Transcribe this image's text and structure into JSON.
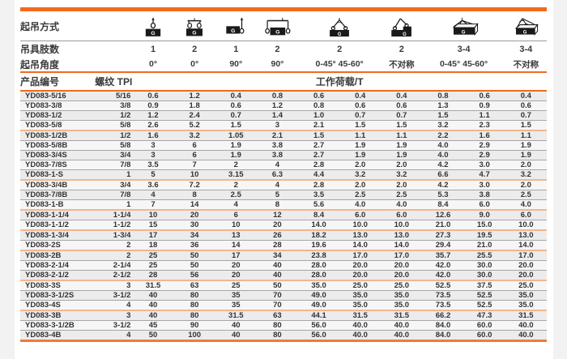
{
  "table": {
    "lift_method_label": "起吊方式",
    "legs_label": "吊具肢数",
    "angle_label": "起吊角度",
    "product_label": "产品编号",
    "thread_label": "螺纹 TPI",
    "load_label": "工作荷载/T",
    "columns": [
      {
        "icon": "sling-single-leg-vertical-icon",
        "legs": "1",
        "angle": "0°"
      },
      {
        "icon": "sling-two-leg-vertical-icon",
        "legs": "2",
        "angle": "0°"
      },
      {
        "icon": "sling-single-leg-side-icon",
        "legs": "1",
        "angle": "90°"
      },
      {
        "icon": "sling-two-leg-side-icon",
        "legs": "2",
        "angle": "90°"
      },
      {
        "icon": "sling-two-leg-angled-icon",
        "legs": "2",
        "angle": "0-45° 45-60°"
      },
      {
        "icon": "sling-two-leg-asymmetric-icon",
        "legs": "2",
        "angle": "不对称"
      },
      {
        "icon": "sling-multi-leg-angled-icon",
        "legs": "3-4",
        "angle": "0-45° 45-60°"
      },
      {
        "icon": "sling-multi-leg-asymmetric-icon",
        "legs": "3-4",
        "angle": "不对称"
      }
    ],
    "rows": [
      {
        "product": "YD083-5/16",
        "tpi": "5/16",
        "loads": [
          "0.6",
          "1.2",
          "0.4",
          "0.8",
          "0.6",
          "0.4",
          "0.4",
          "0.8",
          "0.6",
          "0.4"
        ],
        "group_end": false
      },
      {
        "product": "YD083-3/8",
        "tpi": "3/8",
        "loads": [
          "0.9",
          "1.8",
          "0.6",
          "1.2",
          "0.8",
          "0.6",
          "0.6",
          "1.3",
          "0.9",
          "0.6"
        ],
        "group_end": false
      },
      {
        "product": "YD083-1/2",
        "tpi": "1/2",
        "loads": [
          "1.2",
          "2.4",
          "0.7",
          "1.4",
          "1.0",
          "0.7",
          "0.7",
          "1.5",
          "1.1",
          "0.7"
        ],
        "group_end": false
      },
      {
        "product": "YD083-5/8",
        "tpi": "5/8",
        "loads": [
          "2.6",
          "5.2",
          "1.5",
          "3",
          "2.1",
          "1.5",
          "1.5",
          "3.2",
          "2.3",
          "1.5"
        ],
        "group_end": true
      },
      {
        "product": "YD083-1/2B",
        "tpi": "1/2",
        "loads": [
          "1.6",
          "3.2",
          "1.05",
          "2.1",
          "1.5",
          "1.1",
          "1.1",
          "2.2",
          "1.6",
          "1.1"
        ],
        "group_end": false
      },
      {
        "product": "YD083-5/8B",
        "tpi": "5/8",
        "loads": [
          "3",
          "6",
          "1.9",
          "3.8",
          "2.7",
          "1.9",
          "1.9",
          "4.0",
          "2.9",
          "1.9"
        ],
        "group_end": false
      },
      {
        "product": "YD083-3/4S",
        "tpi": "3/4",
        "loads": [
          "3",
          "6",
          "1.9",
          "3.8",
          "2.7",
          "1.9",
          "1.9",
          "4.0",
          "2.9",
          "1.9"
        ],
        "group_end": false
      },
      {
        "product": "YD083-7/8S",
        "tpi": "7/8",
        "loads": [
          "3.5",
          "7",
          "2",
          "4",
          "2.8",
          "2.0",
          "2.0",
          "4.2",
          "3.0",
          "2.0"
        ],
        "group_end": false
      },
      {
        "product": "YD083-1-S",
        "tpi": "1",
        "loads": [
          "5",
          "10",
          "3.15",
          "6.3",
          "4.4",
          "3.2",
          "3.2",
          "6.6",
          "4.7",
          "3.2"
        ],
        "group_end": true
      },
      {
        "product": "YD083-3/4B",
        "tpi": "3/4",
        "loads": [
          "3.6",
          "7.2",
          "2",
          "4",
          "2.8",
          "2.0",
          "2.0",
          "4.2",
          "3.0",
          "2.0"
        ],
        "group_end": false
      },
      {
        "product": "YD083-7/8B",
        "tpi": "7/8",
        "loads": [
          "4",
          "8",
          "2.5",
          "5",
          "3.5",
          "2.5",
          "2.5",
          "5.3",
          "3.8",
          "2.5"
        ],
        "group_end": false
      },
      {
        "product": "YD083-1-B",
        "tpi": "1",
        "loads": [
          "7",
          "14",
          "4",
          "8",
          "5.6",
          "4.0",
          "4.0",
          "8.4",
          "6.0",
          "4.0"
        ],
        "group_end": true
      },
      {
        "product": "YD083-1-1/4",
        "tpi": "1-1/4",
        "loads": [
          "10",
          "20",
          "6",
          "12",
          "8.4",
          "6.0",
          "6.0",
          "12.6",
          "9.0",
          "6.0"
        ],
        "group_end": false
      },
      {
        "product": "YD083-1-1/2",
        "tpi": "1-1/2",
        "loads": [
          "15",
          "30",
          "10",
          "20",
          "14.0",
          "10.0",
          "10.0",
          "21.0",
          "15.0",
          "10.0"
        ],
        "group_end": true
      },
      {
        "product": "YD083-1-3/4",
        "tpi": "1-3/4",
        "loads": [
          "17",
          "34",
          "13",
          "26",
          "18.2",
          "13.0",
          "13.0",
          "27.3",
          "19.5",
          "13.0"
        ],
        "group_end": false
      },
      {
        "product": "YD083-2S",
        "tpi": "2",
        "loads": [
          "18",
          "36",
          "14",
          "28",
          "19.6",
          "14.0",
          "14.0",
          "29.4",
          "21.0",
          "14.0"
        ],
        "group_end": true
      },
      {
        "product": "YD083-2B",
        "tpi": "2",
        "loads": [
          "25",
          "50",
          "17",
          "34",
          "23.8",
          "17.0",
          "17.0",
          "35.7",
          "25.5",
          "17.0"
        ],
        "group_end": false
      },
      {
        "product": "YD083-2-1/4",
        "tpi": "2-1/4",
        "loads": [
          "25",
          "50",
          "20",
          "40",
          "28.0",
          "20.0",
          "20.0",
          "42.0",
          "30.0",
          "20.0"
        ],
        "group_end": false
      },
      {
        "product": "YD083-2-1/2",
        "tpi": "2-1/2",
        "loads": [
          "28",
          "56",
          "20",
          "40",
          "28.0",
          "20.0",
          "20.0",
          "42.0",
          "30.0",
          "20.0"
        ],
        "group_end": true
      },
      {
        "product": "YD083-3S",
        "tpi": "3",
        "loads": [
          "31.5",
          "63",
          "25",
          "50",
          "35.0",
          "25.0",
          "25.0",
          "52.5",
          "37.5",
          "25.0"
        ],
        "group_end": false
      },
      {
        "product": "YD083-3-1/2S",
        "tpi": "3-1/2",
        "loads": [
          "40",
          "80",
          "35",
          "70",
          "49.0",
          "35.0",
          "35.0",
          "73.5",
          "52.5",
          "35.0"
        ],
        "group_end": false
      },
      {
        "product": "YD083-4S",
        "tpi": "4",
        "loads": [
          "40",
          "80",
          "35",
          "70",
          "49.0",
          "35.0",
          "35.0",
          "73.5",
          "52.5",
          "35.0"
        ],
        "group_end": true
      },
      {
        "product": "YD083-3B",
        "tpi": "3",
        "loads": [
          "40",
          "80",
          "31.5",
          "63",
          "44.1",
          "31.5",
          "31.5",
          "66.2",
          "47.3",
          "31.5"
        ],
        "group_end": false
      },
      {
        "product": "YD083-3-1/2B",
        "tpi": "3-1/2",
        "loads": [
          "45",
          "90",
          "40",
          "80",
          "56.0",
          "40.0",
          "40.0",
          "84.0",
          "60.0",
          "40.0"
        ],
        "group_end": false
      },
      {
        "product": "YD083-4B",
        "tpi": "4",
        "loads": [
          "50",
          "100",
          "40",
          "80",
          "56.0",
          "40.0",
          "40.0",
          "84.0",
          "60.0",
          "40.0"
        ],
        "group_end": false
      }
    ]
  },
  "colors": {
    "accent_orange": "#f26a1d",
    "group_separator": "#f3b68d",
    "row_background": "#ececec",
    "row_line": "#a6a6a6",
    "text": "#333333"
  }
}
